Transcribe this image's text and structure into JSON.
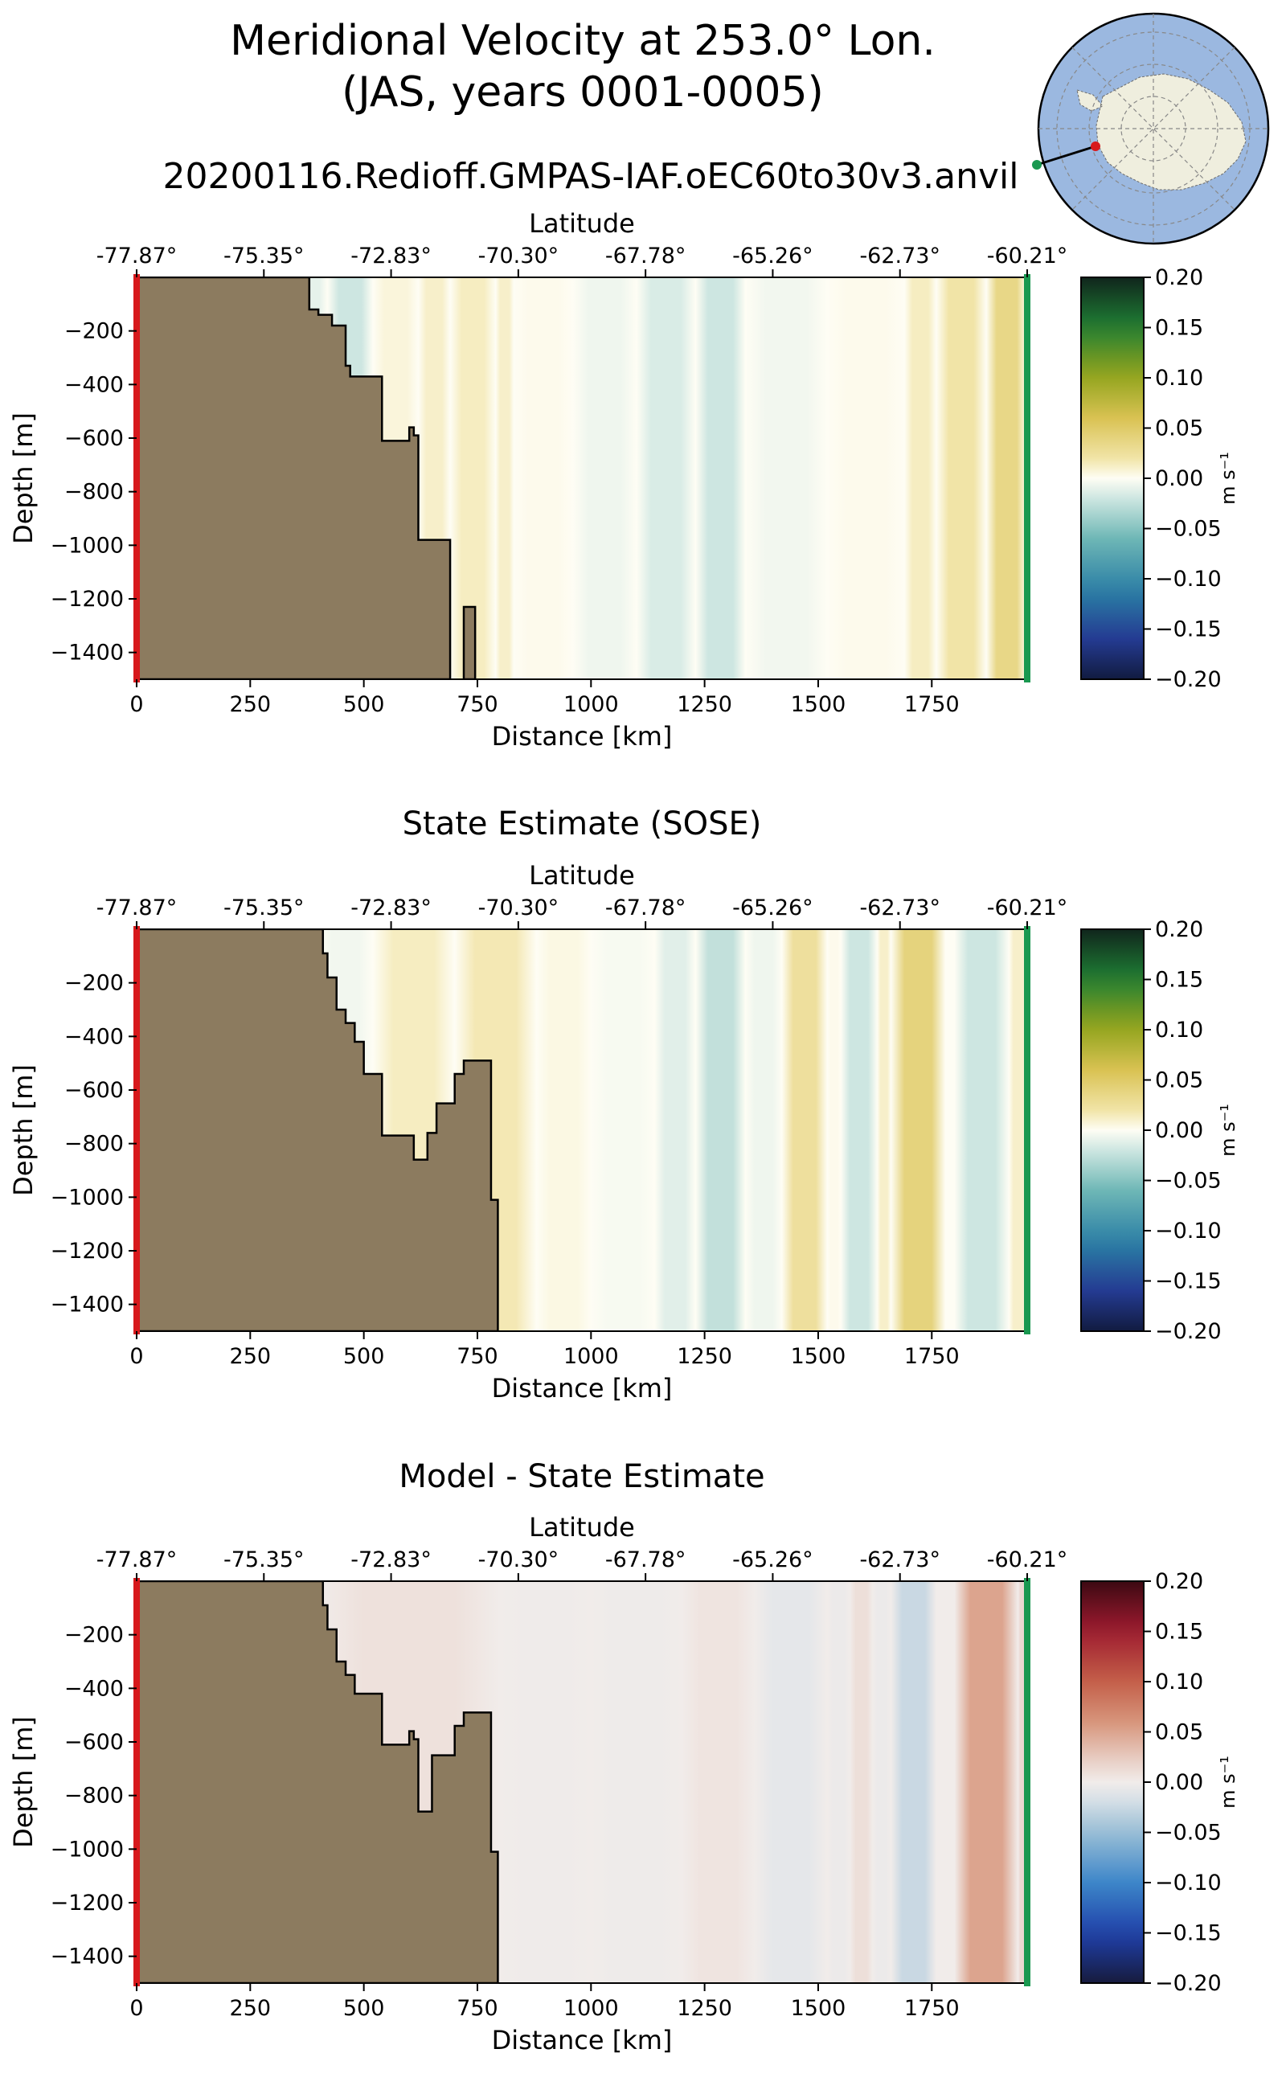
{
  "figure": {
    "title_line1": "Meridional Velocity at 253.0° Lon.",
    "title_line2": "(JAS, years 0001-0005)",
    "run_name": "20200116.Redioff.GMPAS-IAF.oEC60to30v3.anvil"
  },
  "colors": {
    "land": "#8c7b5f",
    "start_marker": "#d7191c",
    "end_marker": "#1a9850",
    "map_ocean": "#9bb8e0",
    "map_land": "#efeede"
  },
  "inset_map": {
    "description_icon": "antarctica-polar-map-icon",
    "section_start_color": "#d7191c",
    "section_end_color": "#1a9850"
  },
  "chart_data": [
    {
      "type": "heatmap",
      "title": "",
      "xlabel": "Distance [km]",
      "ylabel": "Depth [m]",
      "top_xlabel": "Latitude",
      "xlim": [
        0,
        1960
      ],
      "ylim": [
        -1500,
        0
      ],
      "xticks": [
        0,
        250,
        500,
        750,
        1000,
        1250,
        1500,
        1750
      ],
      "yticks": [
        -200,
        -400,
        -600,
        -800,
        -1000,
        -1200,
        -1400
      ],
      "lat_ticks": [
        "-77.87°",
        "-75.35°",
        "-72.83°",
        "-70.30°",
        "-67.78°",
        "-65.26°",
        "-62.73°",
        "-60.21°"
      ],
      "colorbar": {
        "label": "m s⁻¹",
        "min": -0.2,
        "max": 0.2,
        "ticks": [
          "0.20",
          "0.15",
          "0.10",
          "0.05",
          "0.00",
          "−0.05",
          "−0.10",
          "−0.15",
          "−0.20"
        ],
        "colormap": "delta"
      },
      "bottom_profile": [
        [
          0,
          0
        ],
        [
          380,
          0
        ],
        [
          380,
          -120
        ],
        [
          400,
          -120
        ],
        [
          400,
          -140
        ],
        [
          430,
          -140
        ],
        [
          430,
          -180
        ],
        [
          460,
          -180
        ],
        [
          460,
          -330
        ],
        [
          470,
          -330
        ],
        [
          470,
          -370
        ],
        [
          540,
          -370
        ],
        [
          540,
          -610
        ],
        [
          600,
          -610
        ],
        [
          600,
          -560
        ],
        [
          610,
          -560
        ],
        [
          610,
          -590
        ],
        [
          620,
          -590
        ],
        [
          620,
          -980
        ],
        [
          690,
          -980
        ],
        [
          690,
          -1500
        ]
      ],
      "seamount": [
        [
          720,
          -1500
        ],
        [
          720,
          -1230
        ],
        [
          745,
          -1230
        ],
        [
          745,
          -1500
        ]
      ],
      "columns": [
        {
          "x0": 350,
          "x1": 420,
          "v": -0.01
        },
        {
          "x0": 420,
          "x1": 520,
          "v": -0.02
        },
        {
          "x0": 520,
          "x1": 620,
          "v": 0.006
        },
        {
          "x0": 620,
          "x1": 690,
          "v": 0.01
        },
        {
          "x0": 690,
          "x1": 790,
          "v": 0.012
        },
        {
          "x0": 790,
          "x1": 830,
          "v": 0.01
        },
        {
          "x0": 830,
          "x1": 960,
          "v": 0.002
        },
        {
          "x0": 960,
          "x1": 1100,
          "v": -0.006
        },
        {
          "x0": 1100,
          "x1": 1230,
          "v": -0.015
        },
        {
          "x0": 1230,
          "x1": 1340,
          "v": -0.02
        },
        {
          "x0": 1340,
          "x1": 1520,
          "v": -0.005
        },
        {
          "x0": 1520,
          "x1": 1690,
          "v": 0.002
        },
        {
          "x0": 1690,
          "x1": 1760,
          "v": 0.012
        },
        {
          "x0": 1760,
          "x1": 1870,
          "v": 0.02
        },
        {
          "x0": 1870,
          "x1": 1960,
          "v": 0.035
        }
      ]
    },
    {
      "type": "heatmap",
      "title": "State Estimate (SOSE)",
      "xlabel": "Distance [km]",
      "ylabel": "Depth [m]",
      "top_xlabel": "Latitude",
      "xlim": [
        0,
        1960
      ],
      "ylim": [
        -1500,
        0
      ],
      "xticks": [
        0,
        250,
        500,
        750,
        1000,
        1250,
        1500,
        1750
      ],
      "yticks": [
        -200,
        -400,
        -600,
        -800,
        -1000,
        -1200,
        -1400
      ],
      "lat_ticks": [
        "-77.87°",
        "-75.35°",
        "-72.83°",
        "-70.30°",
        "-67.78°",
        "-65.26°",
        "-62.73°",
        "-60.21°"
      ],
      "colorbar": {
        "label": "m s⁻¹",
        "min": -0.2,
        "max": 0.2,
        "ticks": [
          "0.20",
          "0.15",
          "0.10",
          "0.05",
          "0.00",
          "−0.05",
          "−0.10",
          "−0.15",
          "−0.20"
        ],
        "colormap": "delta"
      },
      "bottom_profile": [
        [
          0,
          0
        ],
        [
          410,
          0
        ],
        [
          410,
          -90
        ],
        [
          420,
          -90
        ],
        [
          420,
          -180
        ],
        [
          440,
          -180
        ],
        [
          440,
          -300
        ],
        [
          460,
          -300
        ],
        [
          460,
          -350
        ],
        [
          480,
          -350
        ],
        [
          480,
          -420
        ],
        [
          500,
          -420
        ],
        [
          500,
          -540
        ],
        [
          540,
          -540
        ],
        [
          540,
          -770
        ],
        [
          610,
          -770
        ],
        [
          610,
          -860
        ],
        [
          640,
          -860
        ],
        [
          640,
          -760
        ],
        [
          660,
          -760
        ],
        [
          660,
          -650
        ],
        [
          700,
          -650
        ],
        [
          700,
          -540
        ],
        [
          720,
          -540
        ],
        [
          720,
          -490
        ],
        [
          780,
          -490
        ],
        [
          780,
          -1010
        ],
        [
          795,
          -1010
        ],
        [
          795,
          -1500
        ]
      ],
      "seamount": [],
      "columns": [
        {
          "x0": 400,
          "x1": 520,
          "v": -0.005
        },
        {
          "x0": 520,
          "x1": 700,
          "v": 0.012
        },
        {
          "x0": 700,
          "x1": 880,
          "v": 0.015
        },
        {
          "x0": 880,
          "x1": 1000,
          "v": 0.004
        },
        {
          "x0": 1000,
          "x1": 1140,
          "v": -0.003
        },
        {
          "x0": 1140,
          "x1": 1230,
          "v": -0.012
        },
        {
          "x0": 1230,
          "x1": 1340,
          "v": -0.025
        },
        {
          "x0": 1340,
          "x1": 1420,
          "v": -0.006
        },
        {
          "x0": 1420,
          "x1": 1520,
          "v": 0.025
        },
        {
          "x0": 1520,
          "x1": 1550,
          "v": 0.002
        },
        {
          "x0": 1550,
          "x1": 1630,
          "v": -0.02
        },
        {
          "x0": 1630,
          "x1": 1660,
          "v": 0.01
        },
        {
          "x0": 1660,
          "x1": 1780,
          "v": 0.04
        },
        {
          "x0": 1780,
          "x1": 1800,
          "v": 0.0
        },
        {
          "x0": 1800,
          "x1": 1920,
          "v": -0.02
        },
        {
          "x0": 1920,
          "x1": 1960,
          "v": 0.01
        }
      ]
    },
    {
      "type": "heatmap",
      "title": "Model - State Estimate",
      "xlabel": "Distance [km]",
      "ylabel": "Depth [m]",
      "top_xlabel": "Latitude",
      "xlim": [
        0,
        1960
      ],
      "ylim": [
        -1500,
        0
      ],
      "xticks": [
        0,
        250,
        500,
        750,
        1000,
        1250,
        1500,
        1750
      ],
      "yticks": [
        -200,
        -400,
        -600,
        -800,
        -1000,
        -1200,
        -1400
      ],
      "lat_ticks": [
        "-77.87°",
        "-75.35°",
        "-72.83°",
        "-70.30°",
        "-67.78°",
        "-65.26°",
        "-62.73°",
        "-60.21°"
      ],
      "colorbar": {
        "label": "m s⁻¹",
        "min": -0.2,
        "max": 0.2,
        "ticks": [
          "0.20",
          "0.15",
          "0.10",
          "0.05",
          "0.00",
          "−0.05",
          "−0.10",
          "−0.15",
          "−0.20"
        ],
        "colormap": "balance"
      },
      "bottom_profile": [
        [
          0,
          0
        ],
        [
          410,
          0
        ],
        [
          410,
          -90
        ],
        [
          420,
          -90
        ],
        [
          420,
          -180
        ],
        [
          440,
          -180
        ],
        [
          440,
          -300
        ],
        [
          460,
          -300
        ],
        [
          460,
          -350
        ],
        [
          480,
          -350
        ],
        [
          480,
          -420
        ],
        [
          540,
          -420
        ],
        [
          540,
          -610
        ],
        [
          600,
          -610
        ],
        [
          600,
          -560
        ],
        [
          610,
          -560
        ],
        [
          610,
          -590
        ],
        [
          620,
          -590
        ],
        [
          620,
          -860
        ],
        [
          650,
          -860
        ],
        [
          650,
          -650
        ],
        [
          700,
          -650
        ],
        [
          700,
          -540
        ],
        [
          720,
          -540
        ],
        [
          720,
          -490
        ],
        [
          780,
          -490
        ],
        [
          780,
          -1010
        ],
        [
          795,
          -1010
        ],
        [
          795,
          -1500
        ]
      ],
      "seamount": [],
      "columns": [
        {
          "x0": 400,
          "x1": 800,
          "v": 0.008
        },
        {
          "x0": 800,
          "x1": 1000,
          "v": -0.002
        },
        {
          "x0": 1000,
          "x1": 1200,
          "v": -0.003
        },
        {
          "x0": 1200,
          "x1": 1360,
          "v": 0.006
        },
        {
          "x0": 1360,
          "x1": 1520,
          "v": -0.01
        },
        {
          "x0": 1520,
          "x1": 1570,
          "v": -0.004
        },
        {
          "x0": 1570,
          "x1": 1620,
          "v": 0.01
        },
        {
          "x0": 1620,
          "x1": 1660,
          "v": -0.004
        },
        {
          "x0": 1660,
          "x1": 1760,
          "v": -0.025
        },
        {
          "x0": 1760,
          "x1": 1800,
          "v": 0.0
        },
        {
          "x0": 1800,
          "x1": 1940,
          "v": 0.05
        },
        {
          "x0": 1940,
          "x1": 1960,
          "v": 0.015
        }
      ]
    }
  ]
}
